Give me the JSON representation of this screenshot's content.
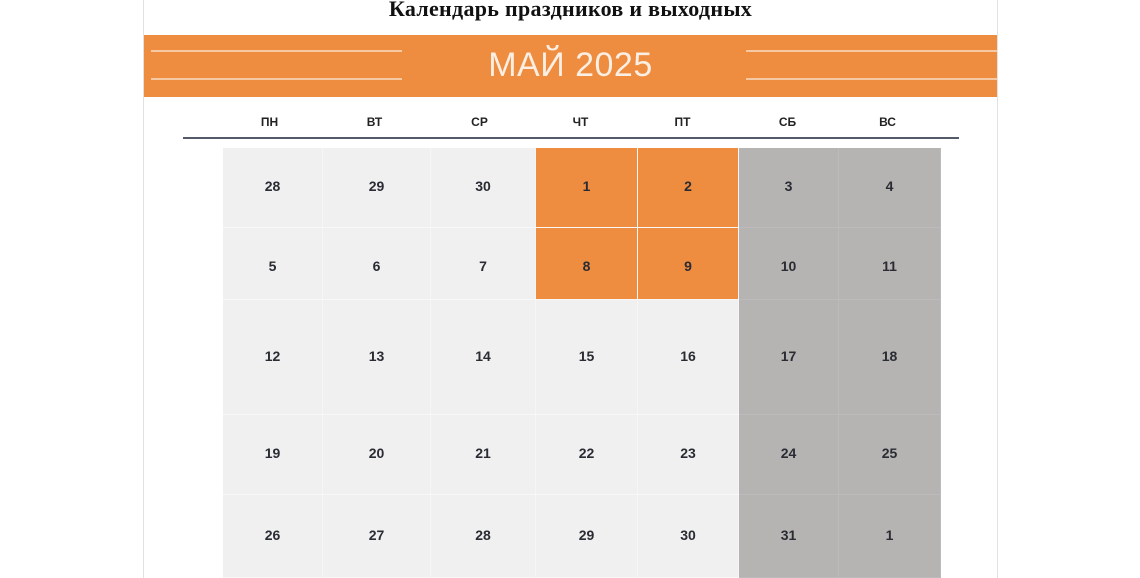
{
  "title": "Календарь праздников и выходных",
  "month_label": "МАЙ 2025",
  "colors": {
    "accent": "#ee8c3f",
    "weekday_cell": "#f0f0f1",
    "weekend_cell": "#b6b3b3",
    "holiday_cell": "#ee8c3f"
  },
  "weekdays": [
    "ПН",
    "ВТ",
    "СР",
    "ЧТ",
    "ПТ",
    "СБ",
    "ВС"
  ],
  "weeks": [
    [
      {
        "d": "28",
        "t": "other"
      },
      {
        "d": "29",
        "t": "other"
      },
      {
        "d": "30",
        "t": "other"
      },
      {
        "d": "1",
        "t": "holiday"
      },
      {
        "d": "2",
        "t": "holiday"
      },
      {
        "d": "3",
        "t": "weekend"
      },
      {
        "d": "4",
        "t": "weekend"
      }
    ],
    [
      {
        "d": "5",
        "t": "work"
      },
      {
        "d": "6",
        "t": "work"
      },
      {
        "d": "7",
        "t": "work"
      },
      {
        "d": "8",
        "t": "holiday"
      },
      {
        "d": "9",
        "t": "holiday"
      },
      {
        "d": "10",
        "t": "weekend"
      },
      {
        "d": "11",
        "t": "weekend"
      }
    ],
    [
      {
        "d": "12",
        "t": "work"
      },
      {
        "d": "13",
        "t": "work"
      },
      {
        "d": "14",
        "t": "work"
      },
      {
        "d": "15",
        "t": "work"
      },
      {
        "d": "16",
        "t": "work"
      },
      {
        "d": "17",
        "t": "weekend"
      },
      {
        "d": "18",
        "t": "weekend"
      }
    ],
    [
      {
        "d": "19",
        "t": "work"
      },
      {
        "d": "20",
        "t": "work"
      },
      {
        "d": "21",
        "t": "work"
      },
      {
        "d": "22",
        "t": "work"
      },
      {
        "d": "23",
        "t": "work"
      },
      {
        "d": "24",
        "t": "weekend"
      },
      {
        "d": "25",
        "t": "weekend"
      }
    ],
    [
      {
        "d": "26",
        "t": "work"
      },
      {
        "d": "27",
        "t": "work"
      },
      {
        "d": "28",
        "t": "work"
      },
      {
        "d": "29",
        "t": "work"
      },
      {
        "d": "30",
        "t": "work"
      },
      {
        "d": "31",
        "t": "weekend"
      },
      {
        "d": "1",
        "t": "other"
      }
    ]
  ]
}
